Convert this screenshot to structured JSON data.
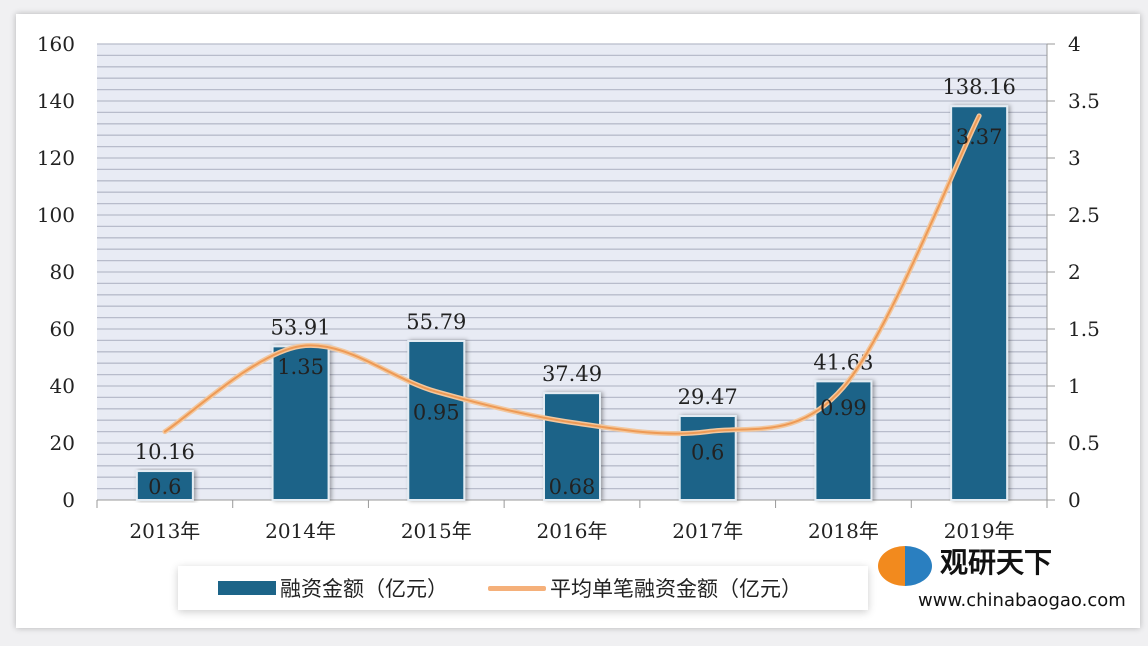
{
  "chart_data": {
    "type": "bar+line",
    "categories": [
      "2013年",
      "2014年",
      "2015年",
      "2016年",
      "2017年",
      "2018年",
      "2019年"
    ],
    "series": [
      {
        "name": "融资金额（亿元）",
        "type": "bar",
        "axis": "left",
        "color": "#1c6488",
        "values": [
          10.16,
          53.91,
          55.79,
          37.49,
          29.47,
          41.63,
          138.16
        ]
      },
      {
        "name": "平均单笔融资金额（亿元）",
        "type": "line",
        "axis": "right",
        "color": "#f5b07a",
        "smooth": true,
        "values": [
          0.6,
          1.35,
          0.95,
          0.68,
          0.6,
          0.99,
          3.37
        ]
      }
    ],
    "left_axis": {
      "range": [
        0,
        160
      ],
      "ticks": [
        "0",
        "20",
        "40",
        "60",
        "80",
        "100",
        "120",
        "140",
        "160"
      ]
    },
    "right_axis": {
      "range": [
        0,
        4
      ],
      "ticks": [
        "0",
        "0.5",
        "1",
        "1.5",
        "2",
        "2.5",
        "3",
        "3.5",
        "4"
      ]
    },
    "grid": true,
    "plot_background": "#e8ebf4",
    "legend_placement": "bottom"
  },
  "watermark": {
    "logo_text": "观研天下",
    "url_text": "www.chinabaogao.com"
  }
}
